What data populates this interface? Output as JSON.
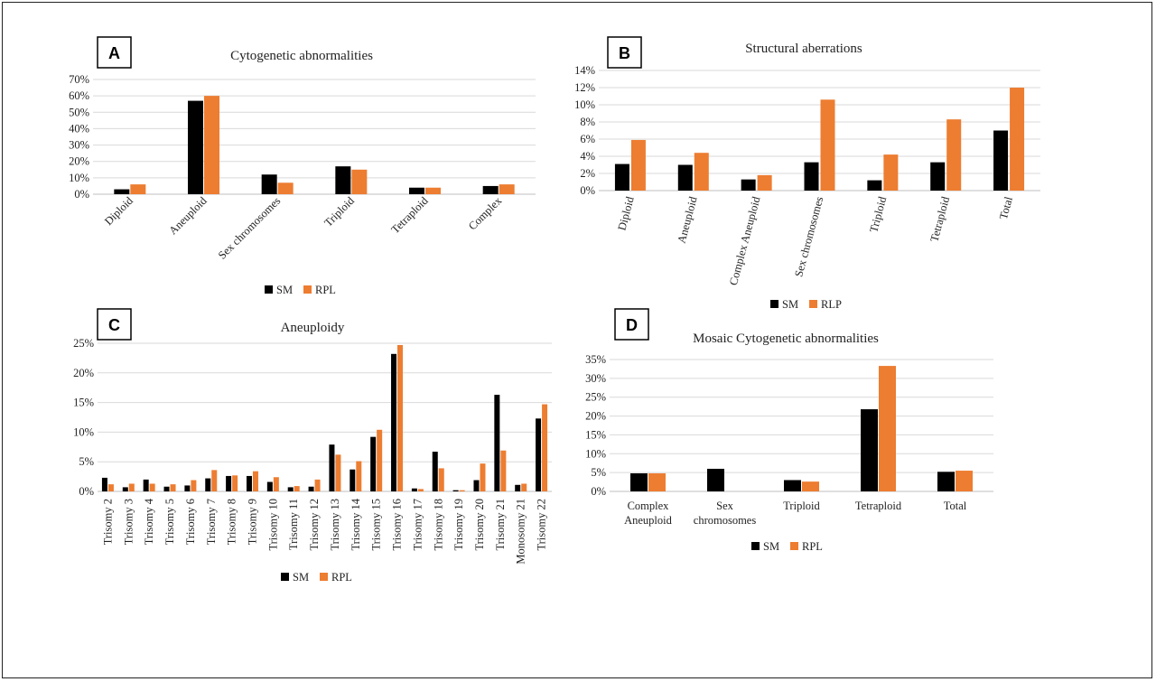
{
  "colors": {
    "SM": "#000000",
    "RPL": "#ed7d31"
  },
  "chart_data": [
    {
      "panel": "A",
      "type": "bar",
      "title": "Cytogenetic abnormalities",
      "categories": [
        "Diploid",
        "Aneuploid",
        "Sex chromosomes",
        "Triploid",
        "Tetraploid",
        "Complex"
      ],
      "series": [
        {
          "name": "SM",
          "values": [
            3,
            57,
            12,
            17,
            4,
            5
          ]
        },
        {
          "name": "RPL",
          "values": [
            6,
            60,
            7,
            15,
            4,
            6
          ]
        }
      ],
      "ylim": [
        0,
        70
      ],
      "yticks": [
        "0%",
        "10%",
        "20%",
        "30%",
        "40%",
        "50%",
        "60%",
        "70%"
      ],
      "grid": true,
      "legend": "bottom"
    },
    {
      "panel": "B",
      "type": "bar",
      "title": "Structural aberrations",
      "categories": [
        "Diploid",
        "Aneuploid",
        "Complex Aneuploid",
        "Sex chromosomes",
        "Triploid",
        "Tetraploid",
        "Total"
      ],
      "series": [
        {
          "name": "SM",
          "values": [
            3.1,
            3.0,
            1.3,
            3.3,
            1.2,
            3.3,
            7.0
          ]
        },
        {
          "name": "RLP",
          "values": [
            5.9,
            4.4,
            1.8,
            10.6,
            4.2,
            8.3,
            12.0
          ]
        }
      ],
      "ylim": [
        0,
        14
      ],
      "yticks": [
        "0%",
        "2%",
        "4%",
        "6%",
        "8%",
        "10%",
        "12%",
        "14%"
      ],
      "grid": true,
      "legend": "bottom"
    },
    {
      "panel": "C",
      "type": "bar",
      "title": "Aneuploidy",
      "categories": [
        "Trisomy 2",
        "Trisomy 3",
        "Trisomy 4",
        "Trisomy 5",
        "Trisomy 6",
        "Trisomy 7",
        "Trisomy 8",
        "Trisomy 9",
        "Trisomy 10",
        "Trisomy 11",
        "Trisomy 12",
        "Trisomy 13",
        "Trisomy 14",
        "Trisomy 15",
        "Trisomy 16",
        "Trisomy 17",
        "Trisomy 18",
        "Trisomy 19",
        "Trisomy 20",
        "Trisomy 21",
        "Monosomy 21",
        "Trisomy 22"
      ],
      "series": [
        {
          "name": "SM",
          "values": [
            2.3,
            0.7,
            2.0,
            0.8,
            1.0,
            2.2,
            2.6,
            2.6,
            1.6,
            0.7,
            0.8,
            7.9,
            3.7,
            9.2,
            23.2,
            0.5,
            6.7,
            0.2,
            1.9,
            16.3,
            1.1,
            12.3
          ]
        },
        {
          "name": "RPL",
          "values": [
            1.2,
            1.3,
            1.3,
            1.2,
            1.9,
            3.6,
            2.7,
            3.4,
            2.4,
            0.9,
            2.0,
            6.2,
            5.1,
            10.4,
            24.7,
            0.4,
            3.9,
            0.2,
            4.7,
            6.9,
            1.3,
            14.7
          ]
        }
      ],
      "ylim": [
        0,
        25
      ],
      "yticks": [
        "0%",
        "5%",
        "10%",
        "15%",
        "20%",
        "25%"
      ],
      "grid": true,
      "legend": "bottom"
    },
    {
      "panel": "D",
      "type": "bar",
      "title": "Mosaic Cytogenetic abnormalities",
      "categories": [
        "Complex Aneuploid",
        "Sex chromosomes",
        "Triploid",
        "Tetraploid",
        "Total"
      ],
      "category_lines": [
        [
          "Complex",
          "Aneuploid"
        ],
        [
          "Sex",
          "chromosomes"
        ],
        [
          "Triploid"
        ],
        [
          "Tetraploid"
        ],
        [
          "Total"
        ]
      ],
      "series": [
        {
          "name": "SM",
          "values": [
            4.8,
            6.0,
            3.0,
            21.8,
            5.2
          ]
        },
        {
          "name": "RPL",
          "values": [
            4.8,
            0,
            2.6,
            33.3,
            5.5
          ]
        }
      ],
      "ylim": [
        0,
        35
      ],
      "yticks": [
        "0%",
        "5%",
        "10%",
        "15%",
        "20%",
        "25%",
        "30%",
        "35%"
      ],
      "grid": true,
      "legend": "bottom"
    }
  ]
}
